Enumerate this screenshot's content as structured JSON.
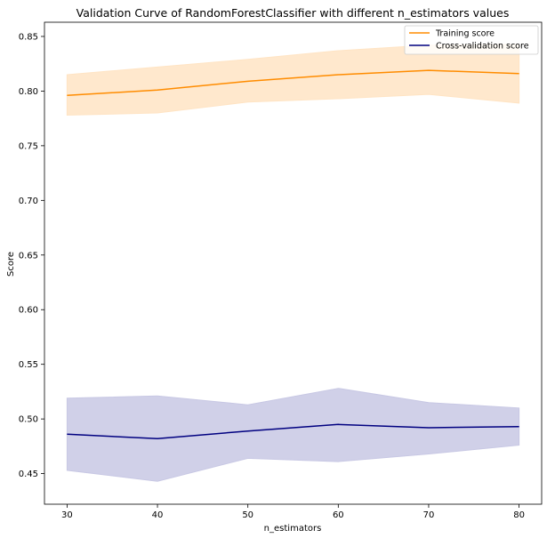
{
  "chart_data": {
    "type": "line",
    "title": "Validation Curve of RandomForestClassifier with different n_estimators values",
    "xlabel": "n_estimators",
    "ylabel": "Score",
    "x": [
      30,
      40,
      50,
      60,
      70,
      80
    ],
    "xlim": [
      27.5,
      82.5
    ],
    "ylim": [
      0.422,
      0.863
    ],
    "xticks": [
      30,
      40,
      50,
      60,
      70,
      80
    ],
    "yticks": [
      0.45,
      0.5,
      0.55,
      0.6,
      0.65,
      0.7,
      0.75,
      0.8,
      0.85
    ],
    "ytick_labels": [
      "0.45",
      "0.50",
      "0.55",
      "0.60",
      "0.65",
      "0.70",
      "0.75",
      "0.80",
      "0.85"
    ],
    "grid": false,
    "legend_position": "top-right",
    "series": [
      {
        "name": "Training score",
        "color": "#ff8c00",
        "band_color": "#ffe4c4",
        "values": [
          0.796,
          0.801,
          0.809,
          0.815,
          0.819,
          0.816
        ],
        "upper": [
          0.815,
          0.822,
          0.829,
          0.837,
          0.842,
          0.843
        ],
        "lower": [
          0.778,
          0.78,
          0.79,
          0.793,
          0.797,
          0.789
        ]
      },
      {
        "name": "Cross-validation score",
        "color": "#000080",
        "band_color": "#c8c8e4",
        "values": [
          0.486,
          0.482,
          0.489,
          0.495,
          0.492,
          0.493
        ],
        "upper": [
          0.519,
          0.521,
          0.513,
          0.528,
          0.515,
          0.51
        ],
        "lower": [
          0.453,
          0.443,
          0.464,
          0.461,
          0.468,
          0.476
        ]
      }
    ]
  }
}
